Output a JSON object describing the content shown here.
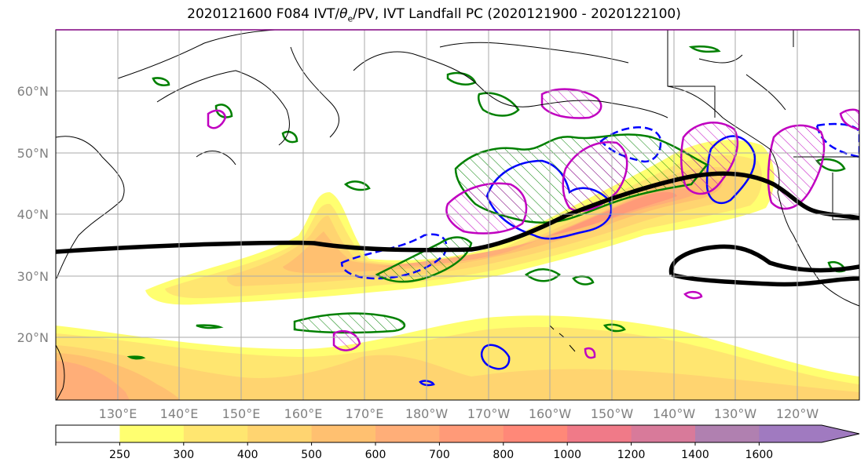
{
  "title": {
    "main": "2020121600 F084 IVT/",
    "theta": "θ",
    "sub": "e",
    "rest": "/PV, IVT Landfall PC (2020121900 - 2020122100)"
  },
  "latitudes": [
    "60°N",
    "50°N",
    "40°N",
    "30°N",
    "20°N"
  ],
  "longitudes": [
    "130°E",
    "140°E",
    "150°E",
    "160°E",
    "170°E",
    "180°W",
    "170°W",
    "160°W",
    "150°W",
    "140°W",
    "130°W",
    "120°W"
  ],
  "colorbar": {
    "levels": [
      "250",
      "300",
      "400",
      "500",
      "600",
      "700",
      "800",
      "1000",
      "1200",
      "1400",
      "1600"
    ],
    "colors": [
      "#ffffff",
      "#ffff70",
      "#ffe670",
      "#ffd470",
      "#ffc070",
      "#ffae78",
      "#ff9a78",
      "#ff8878",
      "#f07a88",
      "#d87a9a",
      "#b080b0",
      "#a07ac0"
    ]
  },
  "legend_colors": {
    "ivt_landfall": "#000000",
    "pv": "#0000ff",
    "theta_e_green": "#008000",
    "theta_e_magenta": "#c000c0"
  }
}
